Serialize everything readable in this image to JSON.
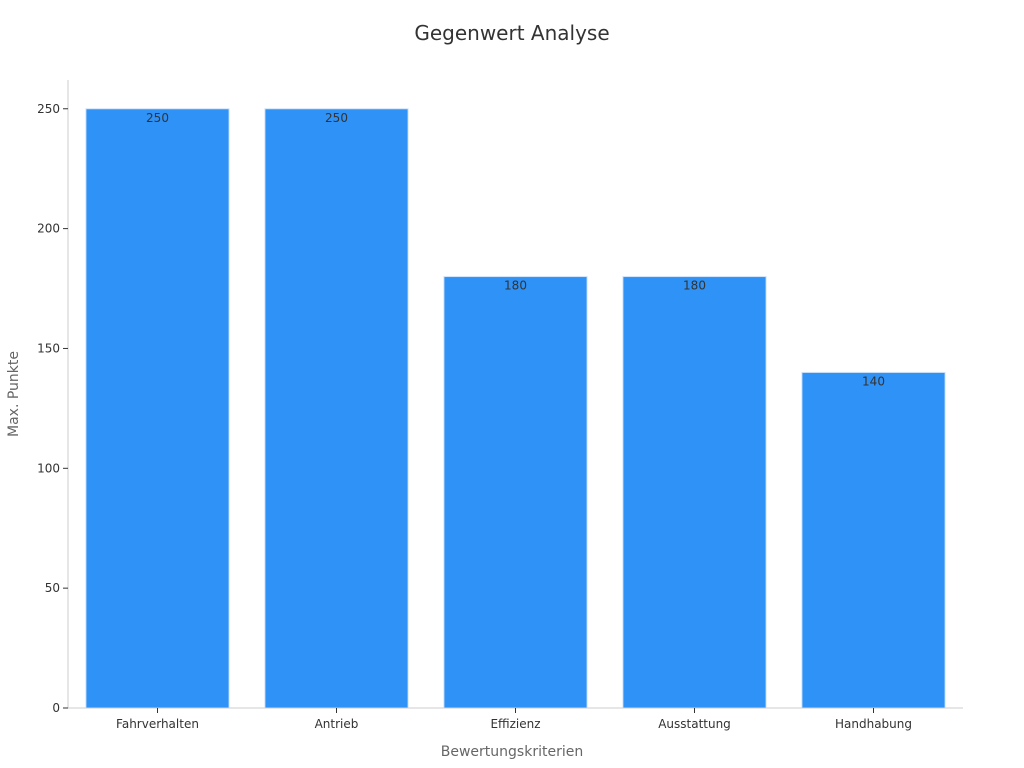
{
  "chart_data": {
    "type": "bar",
    "title": "Gegenwert Analyse",
    "xlabel": "Bewertungskriterien",
    "ylabel": "Max. Punkte",
    "categories": [
      "Fahrverhalten",
      "Antrieb",
      "Effizienz",
      "Ausstattung",
      "Handhabung"
    ],
    "values": [
      250,
      250,
      180,
      180,
      140
    ],
    "data_labels": [
      "250",
      "250",
      "180",
      "180",
      "140"
    ],
    "ylim": [
      0,
      262
    ],
    "yticks": [
      0,
      50,
      100,
      150,
      200,
      250
    ],
    "grid": false,
    "legend": "none",
    "bar_color": "#2f92f7",
    "bar_edge_color": "#d0e4fb"
  }
}
